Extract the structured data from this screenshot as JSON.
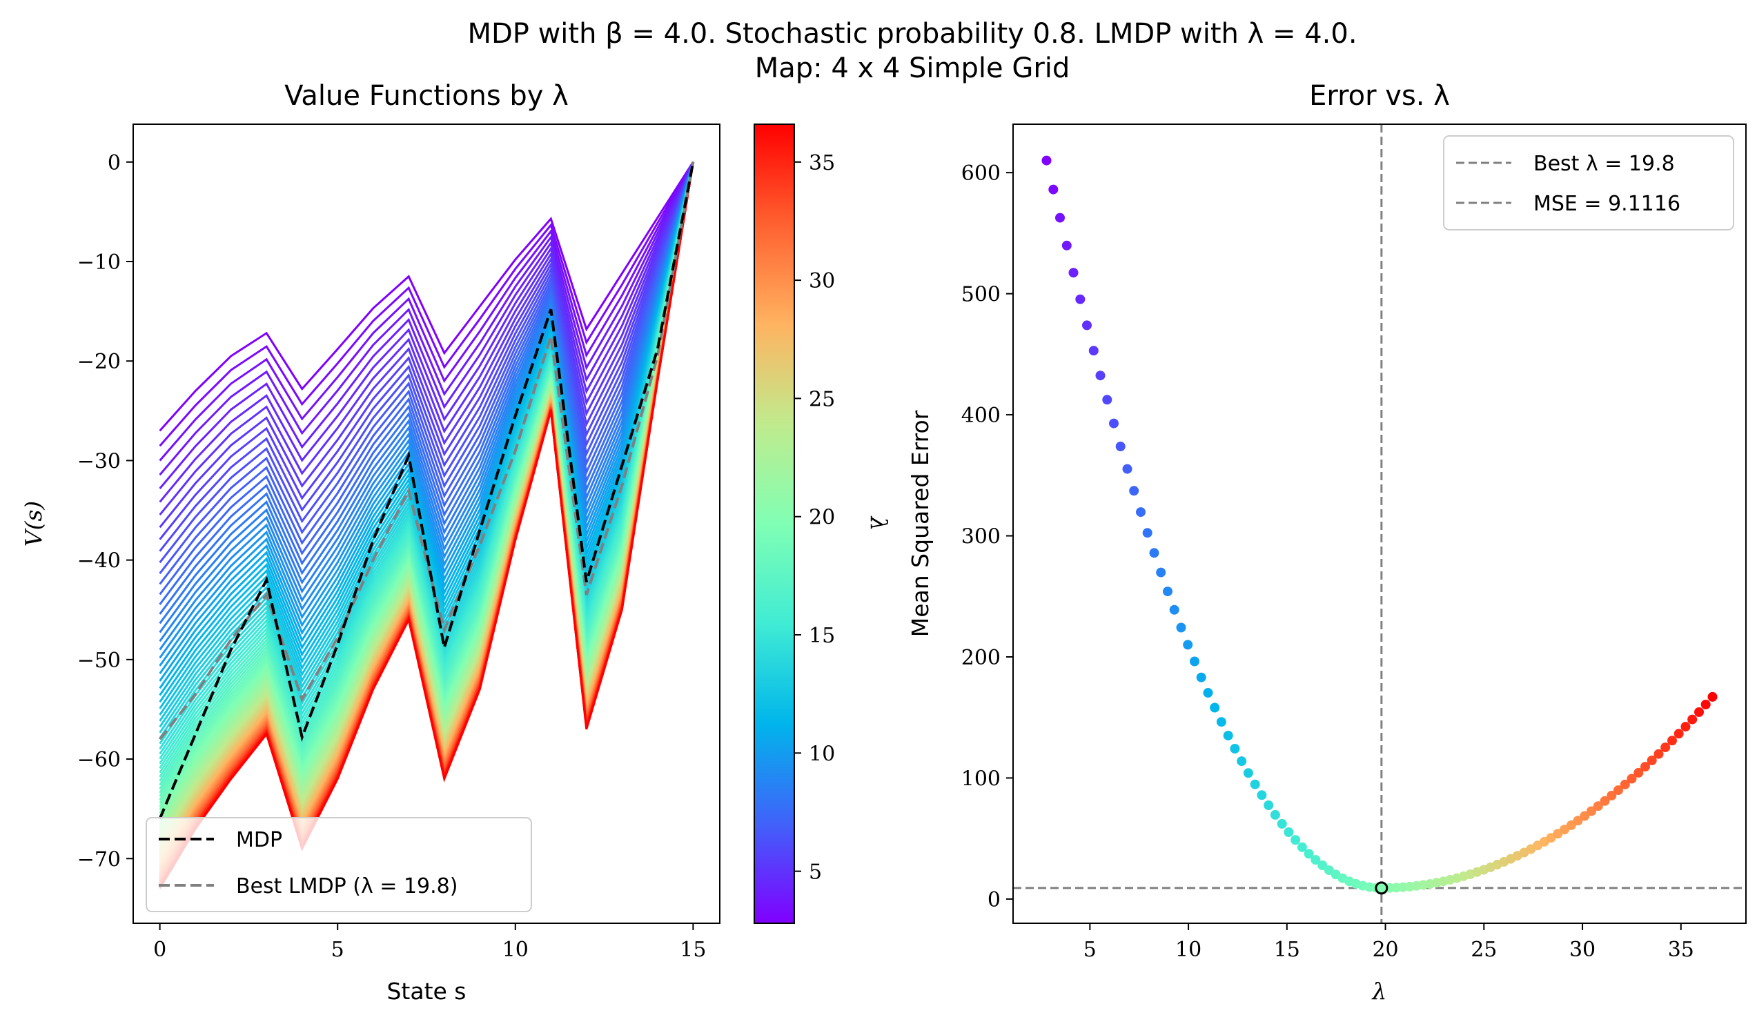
{
  "figure": {
    "title_line1": "MDP with β = 4.0. Stochastic probability 0.8. LMDP with λ = 4.0.",
    "title_line2": "Map: 4 x 4 Simple Grid"
  },
  "colors": {
    "mdp": "#000000",
    "best_lmdp": "#808080",
    "colormap": [
      "#8000ff",
      "#4062fa",
      "#00b5eb",
      "#40ecd4",
      "#80ffb4",
      "#c0eb8d",
      "#ffb360",
      "#ff6130",
      "#ff0000"
    ]
  },
  "chart_data": [
    {
      "type": "line",
      "title": "Value Functions by λ",
      "xlabel": "State s",
      "ylabel": "V(s)",
      "xlim": [
        -0.75,
        15.75
      ],
      "ylim": [
        -76.5,
        3.8
      ],
      "xticks": [
        0,
        5,
        10,
        15
      ],
      "yticks": [
        0,
        -10,
        -20,
        -30,
        -40,
        -50,
        -60,
        -70
      ],
      "colorbar": {
        "label": "λ",
        "range": [
          2.8,
          36.6
        ],
        "ticks": [
          5,
          10,
          15,
          20,
          25,
          30,
          35
        ]
      },
      "x": [
        0,
        1,
        2,
        3,
        4,
        5,
        6,
        7,
        8,
        9,
        10,
        11,
        12,
        13,
        14,
        15
      ],
      "lambda_family": {
        "count": 100,
        "lambda_min": 2.8,
        "lambda_max": 36.6
      },
      "envelope_low_lambda": [
        -27,
        -23,
        -19.5,
        -17.2,
        -22.8,
        -18.8,
        -14.7,
        -11.5,
        -19.2,
        -14.5,
        -9.8,
        -5.7,
        -16.8,
        -11.2,
        -5.6,
        0
      ],
      "envelope_high_lambda": [
        -73,
        -67,
        -62,
        -57.5,
        -69,
        -62,
        -53,
        -46,
        -62,
        -53,
        -38,
        -25,
        -57,
        -45,
        -22,
        0
      ],
      "series": [
        {
          "name": "MDP",
          "values": [
            -66,
            -57.5,
            -49,
            -42,
            -57.8,
            -48.5,
            -38,
            -29.5,
            -48.8,
            -37,
            -25.5,
            -14.8,
            -42.2,
            -30.5,
            -18.8,
            0
          ]
        },
        {
          "name": "Best LMDP (λ = 19.8)",
          "values": [
            -58,
            -53.5,
            -48,
            -43.5,
            -54,
            -47.8,
            -40,
            -33,
            -47,
            -38.5,
            -29,
            -17.5,
            -43.5,
            -32.5,
            -19.5,
            0
          ]
        }
      ],
      "legend": {
        "location": "lower-left",
        "entries": [
          "MDP",
          "Best LMDP (λ = 19.8)"
        ]
      }
    },
    {
      "type": "scatter",
      "title": "Error vs. λ",
      "xlabel": "λ",
      "ylabel": "Mean Squared Error",
      "xlim": [
        1.1,
        38.3
      ],
      "ylim": [
        -20,
        640
      ],
      "xticks": [
        5,
        10,
        15,
        20,
        25,
        30,
        35
      ],
      "yticks": [
        0,
        100,
        200,
        300,
        400,
        500,
        600
      ],
      "points": {
        "count": 100,
        "lambda_min": 2.8,
        "lambda_max": 36.6,
        "mse_at_min": 610,
        "mse_at_max": 167,
        "best_lambda": 19.8,
        "best_mse": 9.1116
      },
      "legend": {
        "location": "top-right",
        "entries": [
          "Best λ = 19.8",
          "MSE = 9.1116"
        ]
      }
    }
  ]
}
